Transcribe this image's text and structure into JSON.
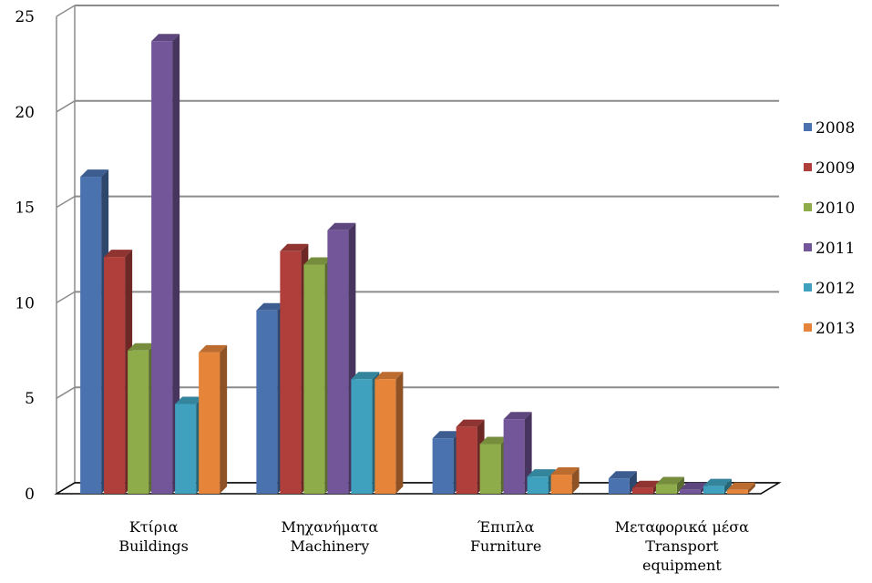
{
  "chart_data": {
    "type": "bar",
    "style": "3d-clustered-column",
    "categories": [
      [
        "Κτίρια",
        "Buildings"
      ],
      [
        "Μηχανήματα",
        "Machinery"
      ],
      [
        "Έπιπλα",
        "Furniture"
      ],
      [
        "Μεταφορικά μέσα",
        "Transport",
        "equipment"
      ]
    ],
    "series": [
      {
        "name": "2008",
        "color": "#4A72AF",
        "values": [
          16.6,
          9.6,
          2.9,
          0.8
        ]
      },
      {
        "name": "2009",
        "color": "#B03F3C",
        "values": [
          12.4,
          12.7,
          3.5,
          0.3
        ]
      },
      {
        "name": "2010",
        "color": "#8FAC4A",
        "values": [
          7.5,
          12.0,
          2.6,
          0.5
        ]
      },
      {
        "name": "2011",
        "color": "#73559A",
        "values": [
          23.7,
          13.8,
          3.9,
          0.2
        ]
      },
      {
        "name": "2012",
        "color": "#3FA1BE",
        "values": [
          4.7,
          6.0,
          0.9,
          0.4
        ]
      },
      {
        "name": "2013",
        "color": "#E6843A",
        "values": [
          7.4,
          6.0,
          1.0,
          0.2
        ]
      }
    ],
    "y_ticks": [
      "0",
      "5",
      "10",
      "15",
      "20",
      "25"
    ],
    "ylim": [
      0,
      25
    ],
    "grid": true,
    "legend_position": "right"
  }
}
